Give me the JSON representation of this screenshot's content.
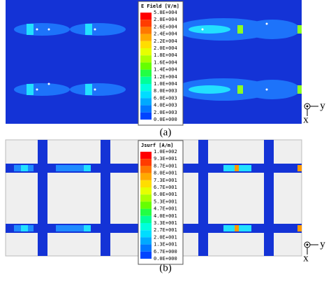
{
  "panels": [
    {
      "label": "(a)",
      "colorbar": {
        "title": "E Field [V/m]",
        "labels": [
          "5.8E+004",
          "2.8E+004",
          "2.6E+004",
          "2.4E+004",
          "2.2E+004",
          "2.0E+004",
          "1.8E+004",
          "1.6E+004",
          "1.4E+004",
          "1.2E+004",
          "1.0E+004",
          "8.0E+003",
          "6.0E+003",
          "4.0E+003",
          "2.0E+003",
          "0.0E+000"
        ]
      },
      "axes": {
        "y": "y",
        "x": "x"
      }
    },
    {
      "label": "(b)",
      "colorbar": {
        "title": "Jsurf [A/m]",
        "labels": [
          "1.0E+002",
          "9.3E+001",
          "8.7E+001",
          "8.0E+001",
          "7.3E+001",
          "6.7E+001",
          "6.0E+001",
          "5.3E+001",
          "4.7E+001",
          "4.0E+001",
          "3.3E+001",
          "2.7E+001",
          "2.0E+001",
          "1.3E+001",
          "6.7E+000",
          "0.0E+000"
        ]
      },
      "axes": {
        "y": "y",
        "x": "x"
      }
    }
  ]
}
